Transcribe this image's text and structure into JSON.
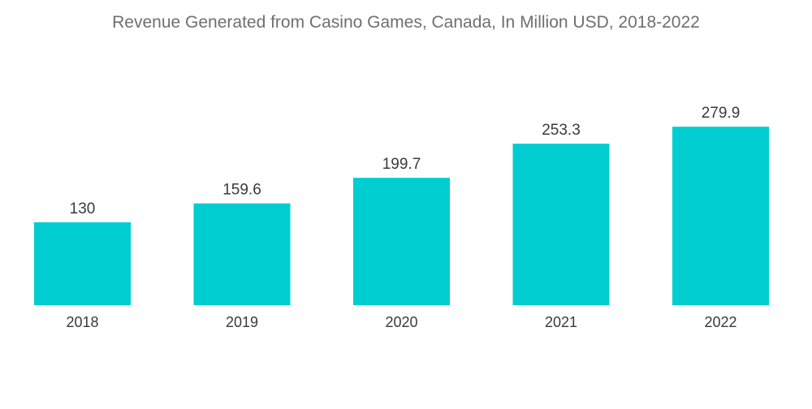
{
  "chart_data": {
    "type": "bar",
    "title": "Revenue Generated from Casino Games, Canada, In Million USD, 2018-2022",
    "categories": [
      "2018",
      "2019",
      "2020",
      "2021",
      "2022"
    ],
    "values": [
      130,
      159.6,
      199.7,
      253.3,
      279.9
    ],
    "value_labels": [
      "130",
      "159.6",
      "199.7",
      "253.3",
      "279.9"
    ],
    "xlabel": "",
    "ylabel": "",
    "ylim": [
      0,
      300
    ],
    "grid": false,
    "legend": "none",
    "colors": {
      "bar": "#00cdd0",
      "title": "#6f6f6f",
      "text": "#3a3a3a"
    }
  }
}
